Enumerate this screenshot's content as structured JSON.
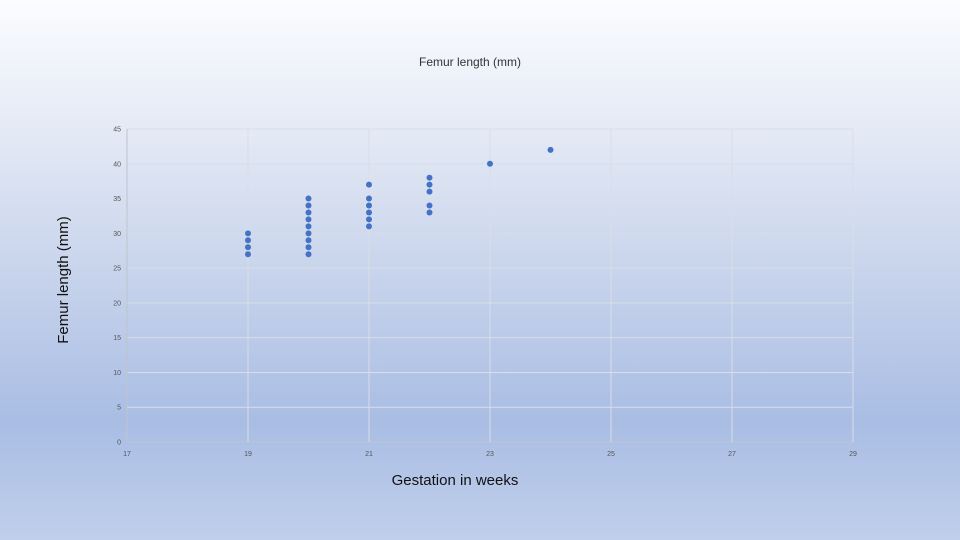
{
  "chart_data": {
    "type": "scatter",
    "title": "Femur length (mm)",
    "xlabel": "Gestation in weeks",
    "ylabel": "Femur length (mm)",
    "xlim": [
      17,
      29
    ],
    "ylim": [
      0,
      45
    ],
    "xticks": [
      "17",
      "19",
      "21",
      "23",
      "25",
      "27",
      "29"
    ],
    "yticks": [
      "0",
      "5",
      "10",
      "15",
      "20",
      "25",
      "30",
      "35",
      "40",
      "45"
    ],
    "grid": true,
    "marker_color": "#4472c4",
    "points": [
      {
        "x": 19,
        "y": 27
      },
      {
        "x": 19,
        "y": 28
      },
      {
        "x": 19,
        "y": 29
      },
      {
        "x": 19,
        "y": 30
      },
      {
        "x": 20,
        "y": 27
      },
      {
        "x": 20,
        "y": 28
      },
      {
        "x": 20,
        "y": 29
      },
      {
        "x": 20,
        "y": 30
      },
      {
        "x": 20,
        "y": 31
      },
      {
        "x": 20,
        "y": 32
      },
      {
        "x": 20,
        "y": 33
      },
      {
        "x": 20,
        "y": 34
      },
      {
        "x": 20,
        "y": 35
      },
      {
        "x": 21,
        "y": 31
      },
      {
        "x": 21,
        "y": 32
      },
      {
        "x": 21,
        "y": 33
      },
      {
        "x": 21,
        "y": 34
      },
      {
        "x": 21,
        "y": 35
      },
      {
        "x": 21,
        "y": 37
      },
      {
        "x": 22,
        "y": 33
      },
      {
        "x": 22,
        "y": 34
      },
      {
        "x": 22,
        "y": 36
      },
      {
        "x": 22,
        "y": 37
      },
      {
        "x": 22,
        "y": 38
      },
      {
        "x": 23,
        "y": 40
      },
      {
        "x": 24,
        "y": 42
      }
    ]
  }
}
